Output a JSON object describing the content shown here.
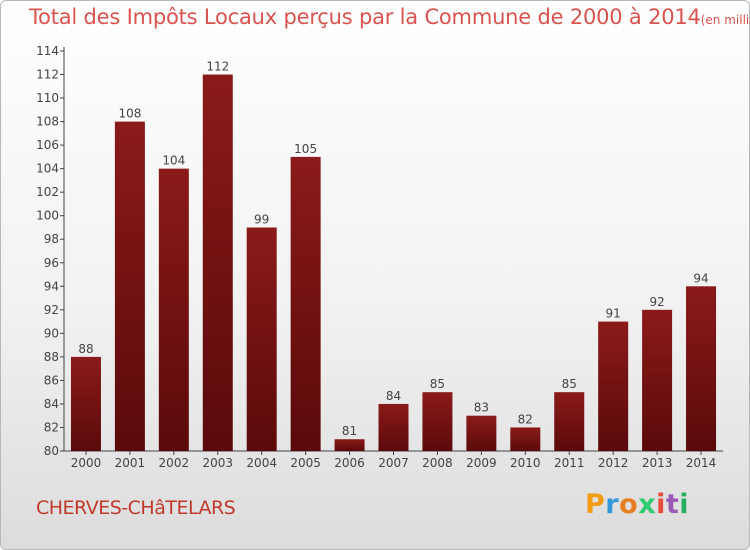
{
  "header": {
    "title": "Total des Impôts Locaux perçus par la Commune de 2000 à 2014",
    "unit": "(en milliers d'€)"
  },
  "footer": {
    "commune": "CHERVES-CHâTELARS",
    "logo_letters": [
      "P",
      "r",
      "o",
      "x",
      "i",
      "t",
      "i"
    ],
    "logo_colors": [
      "#f39c12",
      "#3498db",
      "#e67e22",
      "#2ecc71",
      "#e74c3c",
      "#9b59b6",
      "#27ae60"
    ]
  },
  "chart_data": {
    "type": "bar",
    "title": "Total des Impôts Locaux perçus par la Commune de 2000 à 2014",
    "xlabel": "",
    "ylabel": "",
    "categories": [
      "2000",
      "2001",
      "2002",
      "2003",
      "2004",
      "2005",
      "2006",
      "2007",
      "2008",
      "2009",
      "2010",
      "2011",
      "2012",
      "2013",
      "2014"
    ],
    "values": [
      88,
      108,
      104,
      112,
      99,
      105,
      81,
      84,
      85,
      83,
      82,
      85,
      91,
      92,
      94
    ],
    "ylim": [
      80,
      114
    ],
    "yticks": [
      80,
      82,
      84,
      86,
      88,
      90,
      92,
      94,
      96,
      98,
      100,
      102,
      104,
      106,
      108,
      110,
      112,
      114
    ],
    "bar_color": "#8b1a1a",
    "bar_color_dark": "#5a0a0a",
    "grid": false
  }
}
